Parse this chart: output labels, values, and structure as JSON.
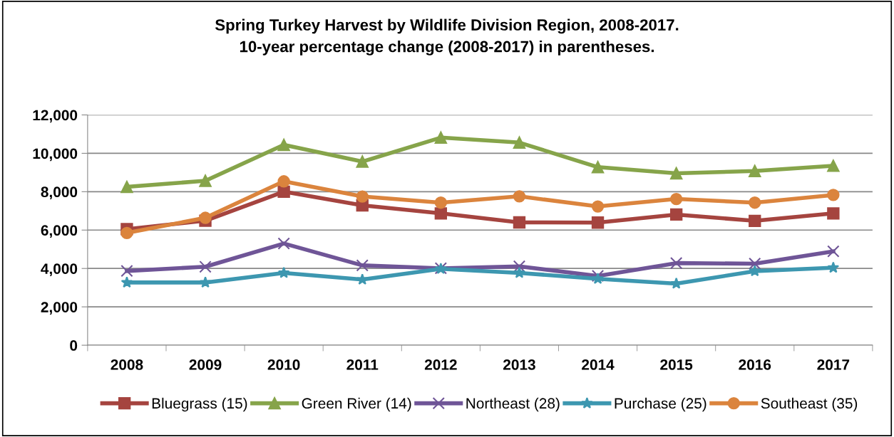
{
  "chart_data": {
    "type": "line",
    "title": "Spring Turkey Harvest by Wildlife Division Region, 2008-2017.\n10-year percentage change (2008-2017) in parentheses.",
    "categories": [
      "2008",
      "2009",
      "2010",
      "2011",
      "2012",
      "2013",
      "2014",
      "2015",
      "2016",
      "2017"
    ],
    "series": [
      {
        "name": "Bluegrass (15)",
        "color": "#a5443f",
        "marker": "square",
        "values": [
          6050,
          6490,
          8000,
          7290,
          6870,
          6400,
          6390,
          6810,
          6480,
          6870
        ]
      },
      {
        "name": "Green River (14)",
        "color": "#86a44a",
        "marker": "triangle",
        "values": [
          8250,
          8570,
          10440,
          9570,
          10820,
          10560,
          9280,
          8960,
          9080,
          9350
        ]
      },
      {
        "name": "Northeast (28)",
        "color": "#6f5597",
        "marker": "cross",
        "values": [
          3870,
          4090,
          5300,
          4160,
          4010,
          4110,
          3610,
          4280,
          4250,
          4890
        ]
      },
      {
        "name": "Purchase (25)",
        "color": "#3d97b0",
        "marker": "star",
        "values": [
          3270,
          3270,
          3770,
          3420,
          3980,
          3770,
          3460,
          3210,
          3860,
          4040
        ]
      },
      {
        "name": "Southeast (35)",
        "color": "#db843d",
        "marker": "circle",
        "values": [
          5850,
          6640,
          8540,
          7750,
          7430,
          7760,
          7230,
          7620,
          7430,
          7830
        ]
      }
    ],
    "ylim": [
      0,
      12000
    ],
    "yticks": [
      {
        "value": 0,
        "label": "0"
      },
      {
        "value": 2000,
        "label": "2,000"
      },
      {
        "value": 4000,
        "label": "4,000"
      },
      {
        "value": 6000,
        "label": "6,000"
      },
      {
        "value": 8000,
        "label": "8,000"
      },
      {
        "value": 10000,
        "label": "10,000"
      },
      {
        "value": 12000,
        "label": "12,000"
      }
    ],
    "grid": "y",
    "legend": "bottom",
    "line_style": "solid"
  }
}
